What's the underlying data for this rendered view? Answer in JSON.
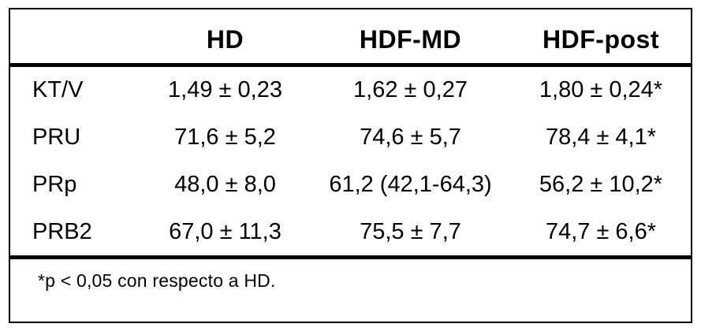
{
  "table": {
    "columns": [
      "HD",
      "HDF-MD",
      "HDF-post"
    ],
    "rows": [
      {
        "label": "KT/V",
        "values": [
          "1,49 ± 0,23",
          "1,62 ± 0,27",
          "1,80 ± 0,24*"
        ]
      },
      {
        "label": "PRU",
        "values": [
          "71,6 ± 5,2",
          "74,6 ± 5,7",
          "78,4 ± 4,1*"
        ]
      },
      {
        "label": "PRp",
        "values": [
          "48,0 ± 8,0",
          "61,2 (42,1-64,3)",
          "56,2 ± 10,2*"
        ]
      },
      {
        "label": "PRB2",
        "values": [
          "67,0 ± 11,3",
          "75,5 ± 7,7",
          "74,7 ± 6,6*"
        ]
      }
    ],
    "footnote": "*p < 0,05 con respecto a HD.",
    "colors": {
      "border": "#000000",
      "text": "#000000",
      "background": "#ffffff"
    }
  },
  "chart_data": {
    "type": "table",
    "columns": [
      "",
      "HD",
      "HDF-MD",
      "HDF-post"
    ],
    "rows": [
      [
        "KT/V",
        "1,49 ± 0,23",
        "1,62 ± 0,27",
        "1,80 ± 0,24*"
      ],
      [
        "PRU",
        "71,6 ± 5,2",
        "74,6 ± 5,7",
        "78,4 ± 4,1*"
      ],
      [
        "PRp",
        "48,0 ± 8,0",
        "61,2 (42,1-64,3)",
        "56,2 ± 10,2*"
      ],
      [
        "PRB2",
        "67,0 ± 11,3",
        "75,5 ± 7,7",
        "74,7 ± 6,6*"
      ]
    ],
    "footnote": "*p < 0,05 con respecto a HD."
  }
}
